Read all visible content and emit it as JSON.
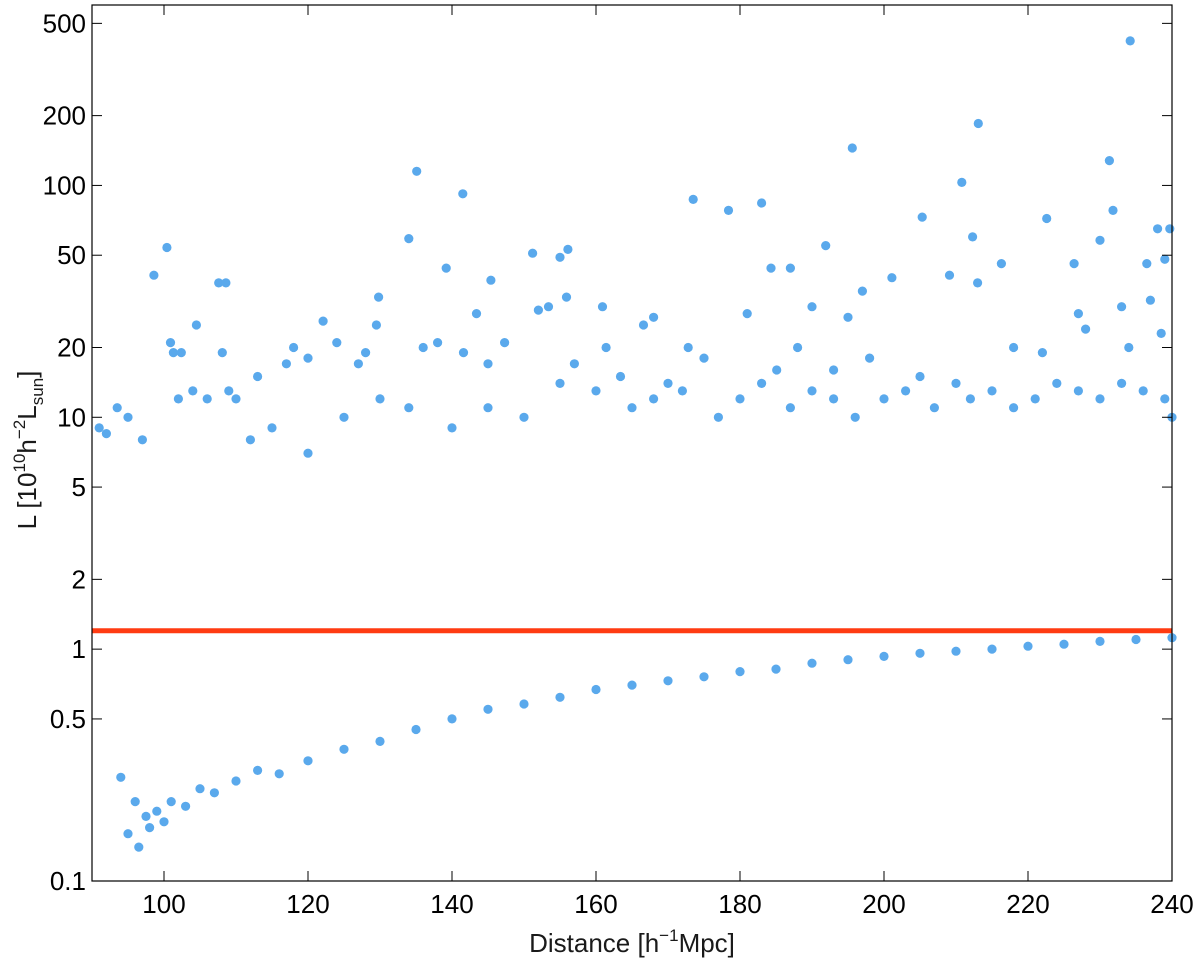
{
  "chart_data": {
    "type": "scatter",
    "title": "",
    "xlabel": {
      "main": "Distance [h",
      "sup": "−1",
      "tail": "Mpc]"
    },
    "ylabel": {
      "p1": "L [10",
      "sup1": "10",
      "p2": "h",
      "sup2": "−2",
      "p3": "L",
      "sub": "sun",
      "p4": "]"
    },
    "xlim": [
      90,
      240
    ],
    "ylim": [
      0.1,
      600
    ],
    "yscale": "log",
    "grid": false,
    "xticks": [
      100,
      120,
      140,
      160,
      180,
      200,
      220,
      240
    ],
    "xtick_labels": [
      "100",
      "120",
      "140",
      "160",
      "180",
      "200",
      "220",
      "240"
    ],
    "yticks": [
      0.1,
      0.5,
      1,
      2,
      5,
      10,
      20,
      50,
      100,
      200,
      500
    ],
    "ytick_labels": [
      "0.1",
      "0.5",
      "1",
      "2",
      "5",
      "10",
      "20",
      "50",
      "100",
      "200",
      "500"
    ],
    "point_color": "#5aa9ec",
    "threshold_color": "#ff3b12",
    "threshold_line": {
      "y": 1.2
    },
    "series": [
      {
        "points": [
          [
            234.2,
            420
          ],
          [
            213.1,
            185
          ],
          [
            195.6,
            145
          ],
          [
            231.3,
            128
          ],
          [
            135.1,
            115
          ],
          [
            210.8,
            103
          ],
          [
            141.5,
            92
          ],
          [
            173.5,
            87
          ],
          [
            178.4,
            78
          ],
          [
            183.0,
            84
          ],
          [
            231.8,
            78
          ],
          [
            222.6,
            72
          ],
          [
            205.3,
            73
          ],
          [
            239.7,
            65
          ],
          [
            238.0,
            65
          ],
          [
            100.4,
            54
          ],
          [
            151.2,
            51
          ],
          [
            156.1,
            53
          ],
          [
            155.0,
            49
          ],
          [
            134.0,
            59
          ],
          [
            191.9,
            55
          ],
          [
            212.3,
            60
          ],
          [
            230.0,
            58
          ],
          [
            98.6,
            41
          ],
          [
            107.6,
            38
          ],
          [
            108.6,
            38
          ],
          [
            139.2,
            44
          ],
          [
            145.4,
            39
          ],
          [
            184.3,
            44
          ],
          [
            187.0,
            44
          ],
          [
            209.1,
            41
          ],
          [
            216.3,
            46
          ],
          [
            226.4,
            46
          ],
          [
            236.5,
            46
          ],
          [
            201.1,
            40
          ],
          [
            239.0,
            48
          ],
          [
            129.8,
            33
          ],
          [
            153.4,
            30
          ],
          [
            155.9,
            33
          ],
          [
            160.9,
            30
          ],
          [
            168.0,
            27
          ],
          [
            190.0,
            30
          ],
          [
            181.0,
            28
          ],
          [
            195.0,
            27
          ],
          [
            197.0,
            35
          ],
          [
            213.0,
            38
          ],
          [
            227.0,
            28
          ],
          [
            233.0,
            30
          ],
          [
            237.0,
            32
          ],
          [
            104.5,
            25
          ],
          [
            122.1,
            26
          ],
          [
            129.5,
            25
          ],
          [
            143.4,
            28
          ],
          [
            152.0,
            29
          ],
          [
            138.0,
            21
          ],
          [
            118.0,
            20
          ],
          [
            124.0,
            21
          ],
          [
            128.0,
            19
          ],
          [
            136.0,
            20
          ],
          [
            120.0,
            18
          ],
          [
            100.9,
            21
          ],
          [
            101.3,
            19
          ],
          [
            102.4,
            19
          ],
          [
            108.1,
            19
          ],
          [
            127.0,
            17
          ],
          [
            141.6,
            19
          ],
          [
            147.3,
            21
          ],
          [
            161.4,
            20
          ],
          [
            166.6,
            25
          ],
          [
            172.8,
            20
          ],
          [
            163.4,
            15
          ],
          [
            175.0,
            18
          ],
          [
            185.1,
            16
          ],
          [
            188.0,
            20
          ],
          [
            193.0,
            16
          ],
          [
            198.0,
            18
          ],
          [
            205.0,
            15
          ],
          [
            218.0,
            20
          ],
          [
            222.0,
            19
          ],
          [
            228.0,
            24
          ],
          [
            234.0,
            20
          ],
          [
            238.5,
            23
          ],
          [
            113.0,
            15
          ],
          [
            117.0,
            17
          ],
          [
            145.0,
            17
          ],
          [
            157.0,
            17
          ],
          [
            170.0,
            14
          ],
          [
            92.0,
            8.5
          ],
          [
            93.5,
            11
          ],
          [
            91.0,
            9
          ],
          [
            95.0,
            10
          ],
          [
            97.0,
            8
          ],
          [
            102.0,
            12
          ],
          [
            104.0,
            13
          ],
          [
            106.0,
            12
          ],
          [
            109.0,
            13
          ],
          [
            110.0,
            12
          ],
          [
            112.0,
            8
          ],
          [
            115.0,
            9
          ],
          [
            120.0,
            7
          ],
          [
            125.0,
            10
          ],
          [
            130.0,
            12
          ],
          [
            134.0,
            11
          ],
          [
            140.0,
            9
          ],
          [
            145.0,
            11
          ],
          [
            150.0,
            10
          ],
          [
            155.0,
            14
          ],
          [
            160.0,
            13
          ],
          [
            165.0,
            11
          ],
          [
            168.0,
            12
          ],
          [
            172.0,
            13
          ],
          [
            177.0,
            10
          ],
          [
            180.0,
            12
          ],
          [
            183.0,
            14
          ],
          [
            187.0,
            11
          ],
          [
            190.0,
            13
          ],
          [
            193.0,
            12
          ],
          [
            196.0,
            10
          ],
          [
            200.0,
            12
          ],
          [
            203.0,
            13
          ],
          [
            207.0,
            11
          ],
          [
            210.0,
            14
          ],
          [
            212.0,
            12
          ],
          [
            215.0,
            13
          ],
          [
            218.0,
            11
          ],
          [
            221.0,
            12
          ],
          [
            224.0,
            14
          ],
          [
            227.0,
            13
          ],
          [
            230.0,
            12
          ],
          [
            233.0,
            14
          ],
          [
            236.0,
            13
          ],
          [
            239.0,
            12
          ],
          [
            240.0,
            10
          ],
          [
            94.0,
            0.28
          ],
          [
            96.0,
            0.22
          ],
          [
            95.0,
            0.16
          ],
          [
            97.5,
            0.19
          ],
          [
            99.0,
            0.2
          ],
          [
            101.0,
            0.22
          ],
          [
            103.0,
            0.21
          ],
          [
            96.5,
            0.14
          ],
          [
            98.0,
            0.17
          ],
          [
            100.0,
            0.18
          ],
          [
            105.0,
            0.25
          ],
          [
            107.0,
            0.24
          ],
          [
            110.0,
            0.27
          ],
          [
            113.0,
            0.3
          ],
          [
            116.0,
            0.29
          ],
          [
            120.0,
            0.33
          ],
          [
            125.0,
            0.37
          ],
          [
            130.0,
            0.4
          ],
          [
            135.0,
            0.45
          ],
          [
            140.0,
            0.5
          ],
          [
            145.0,
            0.55
          ],
          [
            150.0,
            0.58
          ],
          [
            155.0,
            0.62
          ],
          [
            160.0,
            0.67
          ],
          [
            165.0,
            0.7
          ],
          [
            170.0,
            0.73
          ],
          [
            175.0,
            0.76
          ],
          [
            180.0,
            0.8
          ],
          [
            185.0,
            0.82
          ],
          [
            190.0,
            0.87
          ],
          [
            195.0,
            0.9
          ],
          [
            200.0,
            0.93
          ],
          [
            205.0,
            0.96
          ],
          [
            210.0,
            0.98
          ],
          [
            215.0,
            1.0
          ],
          [
            220.0,
            1.03
          ],
          [
            225.0,
            1.05
          ],
          [
            230.0,
            1.08
          ],
          [
            235.0,
            1.1
          ],
          [
            240.0,
            1.12
          ]
        ]
      }
    ]
  }
}
